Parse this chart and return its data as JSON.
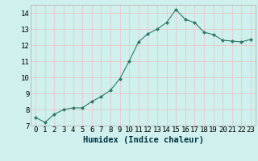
{
  "x": [
    0,
    1,
    2,
    3,
    4,
    5,
    6,
    7,
    8,
    9,
    10,
    11,
    12,
    13,
    14,
    15,
    16,
    17,
    18,
    19,
    20,
    21,
    22,
    23
  ],
  "y": [
    7.5,
    7.2,
    7.7,
    8.0,
    8.1,
    8.1,
    8.5,
    8.8,
    9.2,
    9.9,
    11.0,
    12.2,
    12.7,
    13.0,
    13.4,
    14.2,
    13.6,
    13.4,
    12.8,
    12.65,
    12.3,
    12.25,
    12.2,
    12.35
  ],
  "xlabel": "Humidex (Indice chaleur)",
  "ylim": [
    7,
    14.5
  ],
  "xlim": [
    -0.5,
    23.5
  ],
  "yticks": [
    7,
    8,
    9,
    10,
    11,
    12,
    13,
    14
  ],
  "xticks": [
    0,
    1,
    2,
    3,
    4,
    5,
    6,
    7,
    8,
    9,
    10,
    11,
    12,
    13,
    14,
    15,
    16,
    17,
    18,
    19,
    20,
    21,
    22,
    23
  ],
  "line_color": "#2d7a6a",
  "marker_color": "#2d7a6a",
  "bg_color": "#cff0ec",
  "grid_color": "#e8c8c8",
  "xlabel_fontsize": 7.5,
  "tick_fontsize": 6.5
}
